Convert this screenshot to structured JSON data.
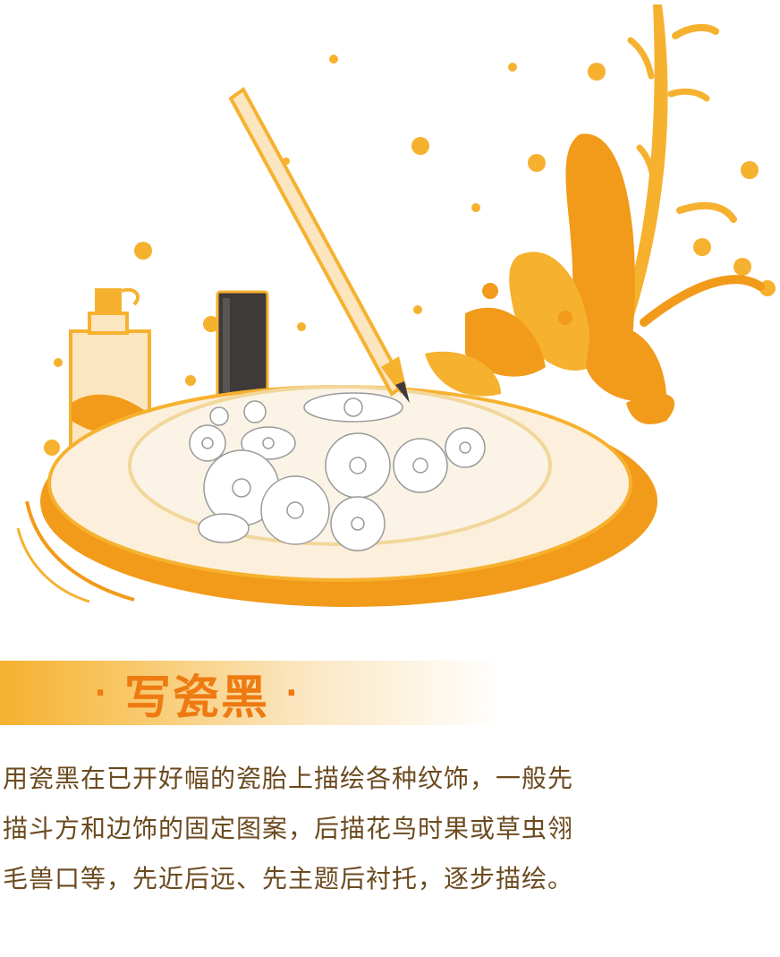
{
  "title": {
    "dot": "·",
    "text": "写瓷黑"
  },
  "description": {
    "lines": [
      "用瓷黑在已开好幅的瓷胎上描绘各种纹饰，一般先",
      "描斗方和边饰的固定图案，后描花鸟时果或草虫翎",
      "毛兽口等，先近后远、先主题后衬托，逐步描绘。"
    ]
  },
  "colors": {
    "accent": "#ee7a12",
    "orange": "#f29a1a",
    "light_orange": "#f6b12f",
    "plate": "#fcefdc",
    "ink_bottle": "#3e3a39",
    "text": "#6b4a1f"
  },
  "icons": [
    "porcelain-plate",
    "brush-pen",
    "ink-bottle",
    "glass-bottle",
    "floral-leaves"
  ]
}
